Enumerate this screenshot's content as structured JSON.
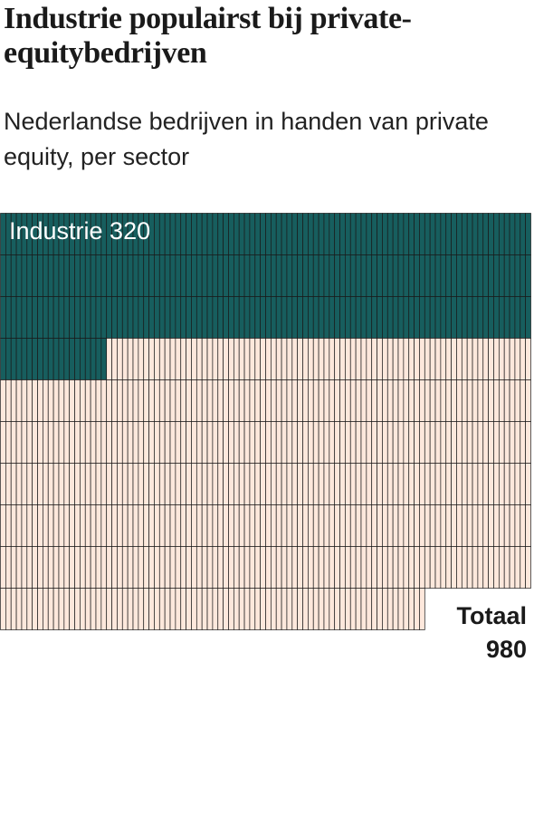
{
  "title": "Industrie populairst bij private-equitybedrijven",
  "subtitle": "Nederlandse bedrijven in handen van private equity, per sector",
  "chart_data": {
    "type": "waffle",
    "total": 980,
    "columns": 100,
    "highlight": {
      "name": "Industrie",
      "value": 320,
      "color": "#175e5e"
    },
    "rest_color": "#fde8dc",
    "line_color": "#1a1a1a",
    "label": "Industrie 320",
    "total_label": [
      "Totaal",
      "980"
    ]
  }
}
